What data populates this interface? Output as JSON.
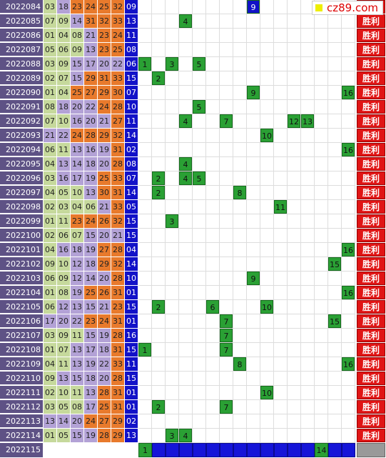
{
  "logo": "cz89.com",
  "rows": [
    {
      "issue": "2022084",
      "reds": [
        "03",
        "18",
        "23",
        "24",
        "25",
        "32"
      ],
      "blue": "09",
      "marks": [
        "9"
      ],
      "mark_style": "blue",
      "tag": "胜利"
    },
    {
      "issue": "2022085",
      "reds": [
        "07",
        "09",
        "14",
        "31",
        "32",
        "33"
      ],
      "blue": "13",
      "marks": [
        "4"
      ],
      "tag": "胜利"
    },
    {
      "issue": "2022086",
      "reds": [
        "01",
        "04",
        "08",
        "21",
        "23",
        "24"
      ],
      "blue": "11",
      "marks": [],
      "tag": "胜利"
    },
    {
      "issue": "2022087",
      "reds": [
        "05",
        "06",
        "09",
        "13",
        "23",
        "25"
      ],
      "blue": "08",
      "marks": [],
      "tag": "胜利"
    },
    {
      "issue": "2022088",
      "reds": [
        "03",
        "09",
        "15",
        "17",
        "20",
        "22"
      ],
      "blue": "06",
      "marks": [
        "1",
        "3",
        "5"
      ],
      "tag": "胜利"
    },
    {
      "issue": "2022089",
      "reds": [
        "02",
        "07",
        "15",
        "29",
        "31",
        "33"
      ],
      "blue": "15",
      "marks": [
        "2"
      ],
      "tag": "胜利"
    },
    {
      "issue": "2022090",
      "reds": [
        "01",
        "04",
        "25",
        "27",
        "29",
        "30"
      ],
      "blue": "07",
      "marks": [
        "9",
        "16"
      ],
      "tag": "胜利"
    },
    {
      "issue": "2022091",
      "reds": [
        "08",
        "18",
        "20",
        "22",
        "24",
        "28"
      ],
      "blue": "10",
      "marks": [
        "5"
      ],
      "tag": "胜利"
    },
    {
      "issue": "2022092",
      "reds": [
        "07",
        "10",
        "16",
        "20",
        "21",
        "27"
      ],
      "blue": "11",
      "marks": [
        "4",
        "7",
        "12",
        "13"
      ],
      "tag": "胜利"
    },
    {
      "issue": "2022093",
      "reds": [
        "21",
        "22",
        "24",
        "28",
        "29",
        "32"
      ],
      "blue": "14",
      "marks": [
        "10"
      ],
      "tag": "胜利"
    },
    {
      "issue": "2022094",
      "reds": [
        "06",
        "11",
        "13",
        "16",
        "19",
        "31"
      ],
      "blue": "02",
      "marks": [
        "16"
      ],
      "tag": "胜利"
    },
    {
      "issue": "2022095",
      "reds": [
        "04",
        "13",
        "14",
        "18",
        "20",
        "28"
      ],
      "blue": "08",
      "marks": [
        "4"
      ],
      "tag": "胜利"
    },
    {
      "issue": "2022096",
      "reds": [
        "03",
        "16",
        "17",
        "19",
        "25",
        "33"
      ],
      "blue": "07",
      "marks": [
        "2",
        "4",
        "5"
      ],
      "tag": "胜利"
    },
    {
      "issue": "2022097",
      "reds": [
        "04",
        "05",
        "10",
        "13",
        "30",
        "31"
      ],
      "blue": "14",
      "marks": [
        "2",
        "8"
      ],
      "tag": "胜利"
    },
    {
      "issue": "2022098",
      "reds": [
        "02",
        "03",
        "04",
        "06",
        "21",
        "33"
      ],
      "blue": "05",
      "marks": [
        "11"
      ],
      "tag": "胜利"
    },
    {
      "issue": "2022099",
      "reds": [
        "01",
        "11",
        "23",
        "24",
        "26",
        "32"
      ],
      "blue": "15",
      "marks": [
        "3"
      ],
      "tag": "胜利"
    },
    {
      "issue": "2022100",
      "reds": [
        "02",
        "06",
        "07",
        "15",
        "20",
        "21"
      ],
      "blue": "15",
      "marks": [],
      "tag": "胜利"
    },
    {
      "issue": "2022101",
      "reds": [
        "04",
        "16",
        "18",
        "19",
        "27",
        "28"
      ],
      "blue": "04",
      "marks": [
        "16"
      ],
      "tag": "胜利"
    },
    {
      "issue": "2022102",
      "reds": [
        "09",
        "10",
        "12",
        "18",
        "29",
        "32"
      ],
      "blue": "14",
      "marks": [
        "15"
      ],
      "tag": "胜利"
    },
    {
      "issue": "2022103",
      "reds": [
        "06",
        "09",
        "12",
        "14",
        "20",
        "28"
      ],
      "blue": "10",
      "marks": [
        "9"
      ],
      "tag": "胜利"
    },
    {
      "issue": "2022104",
      "reds": [
        "01",
        "08",
        "19",
        "25",
        "26",
        "31"
      ],
      "blue": "01",
      "marks": [
        "16"
      ],
      "tag": "胜利"
    },
    {
      "issue": "2022105",
      "reds": [
        "06",
        "12",
        "13",
        "15",
        "21",
        "23"
      ],
      "blue": "15",
      "marks": [
        "2",
        "6",
        "10"
      ],
      "tag": "胜利"
    },
    {
      "issue": "2022106",
      "reds": [
        "17",
        "20",
        "22",
        "23",
        "24",
        "31"
      ],
      "blue": "01",
      "marks": [
        "7",
        "15"
      ],
      "tag": "胜利"
    },
    {
      "issue": "2022107",
      "reds": [
        "03",
        "09",
        "11",
        "15",
        "19",
        "28"
      ],
      "blue": "16",
      "marks": [
        "7"
      ],
      "tag": "胜利"
    },
    {
      "issue": "2022108",
      "reds": [
        "01",
        "07",
        "13",
        "17",
        "18",
        "31"
      ],
      "blue": "15",
      "marks": [
        "1",
        "7"
      ],
      "tag": "胜利"
    },
    {
      "issue": "2022109",
      "reds": [
        "04",
        "11",
        "13",
        "19",
        "22",
        "33"
      ],
      "blue": "11",
      "marks": [
        "8",
        "16"
      ],
      "tag": "胜利"
    },
    {
      "issue": "2022110",
      "reds": [
        "09",
        "13",
        "15",
        "18",
        "20",
        "28"
      ],
      "blue": "15",
      "marks": [],
      "tag": "胜利"
    },
    {
      "issue": "2022111",
      "reds": [
        "02",
        "10",
        "11",
        "13",
        "28",
        "31"
      ],
      "blue": "01",
      "marks": [
        "10"
      ],
      "tag": "胜利"
    },
    {
      "issue": "2022112",
      "reds": [
        "03",
        "05",
        "08",
        "17",
        "25",
        "31"
      ],
      "blue": "01",
      "marks": [
        "2",
        "7"
      ],
      "tag": "胜利"
    },
    {
      "issue": "2022113",
      "reds": [
        "13",
        "14",
        "20",
        "24",
        "27",
        "29"
      ],
      "blue": "02",
      "marks": [],
      "tag": "胜利"
    },
    {
      "issue": "2022114",
      "reds": [
        "01",
        "05",
        "15",
        "19",
        "28",
        "29"
      ],
      "blue": "13",
      "marks": [
        "3",
        "4"
      ],
      "tag": "胜利"
    }
  ],
  "last": {
    "issue": "2022115",
    "marks": [
      "1",
      "14"
    ]
  }
}
